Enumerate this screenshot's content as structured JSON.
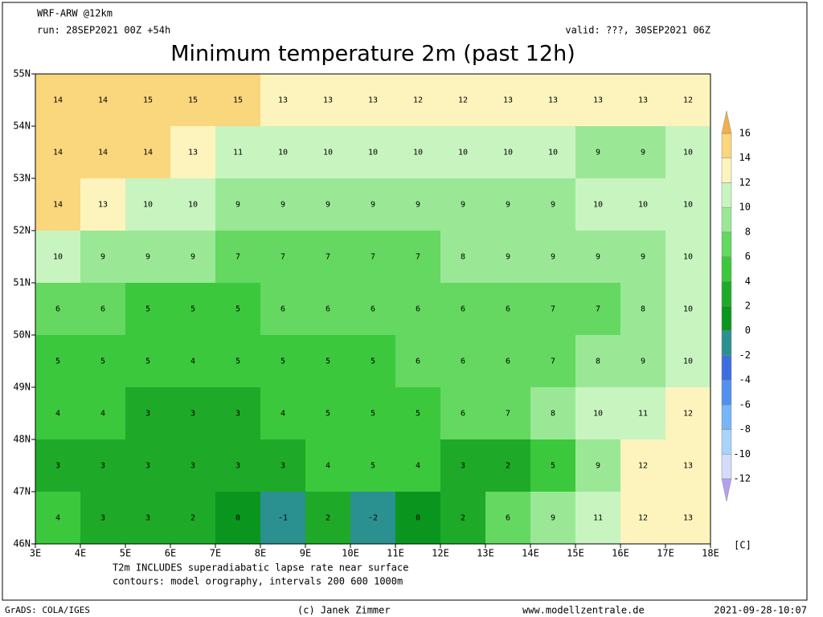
{
  "header": {
    "model": "WRF-ARW @12km",
    "run": "run: 28SEP2021 00Z +54h",
    "valid": "valid: ???, 30SEP2021 06Z",
    "title": "Minimum temperature 2m (past 12h)"
  },
  "map": {
    "xlim": [
      3,
      18
    ],
    "ylim": [
      46,
      55
    ],
    "xticks": [
      {
        "value": 3,
        "label": "3E"
      },
      {
        "value": 4,
        "label": "4E"
      },
      {
        "value": 5,
        "label": "5E"
      },
      {
        "value": 6,
        "label": "6E"
      },
      {
        "value": 7,
        "label": "7E"
      },
      {
        "value": 8,
        "label": "8E"
      },
      {
        "value": 9,
        "label": "9E"
      },
      {
        "value": 10,
        "label": "10E"
      },
      {
        "value": 11,
        "label": "11E"
      },
      {
        "value": 12,
        "label": "12E"
      },
      {
        "value": 13,
        "label": "13E"
      },
      {
        "value": 14,
        "label": "14E"
      },
      {
        "value": 15,
        "label": "15E"
      },
      {
        "value": 16,
        "label": "16E"
      },
      {
        "value": 17,
        "label": "17E"
      },
      {
        "value": 18,
        "label": "18E"
      }
    ],
    "yticks": [
      {
        "value": 55,
        "label": "55N"
      },
      {
        "value": 54,
        "label": "54N"
      },
      {
        "value": 53,
        "label": "53N"
      },
      {
        "value": 52,
        "label": "52N"
      },
      {
        "value": 51,
        "label": "51N"
      },
      {
        "value": 50,
        "label": "50N"
      },
      {
        "value": 49,
        "label": "49N"
      },
      {
        "value": 48,
        "label": "48N"
      },
      {
        "value": 47,
        "label": "47N"
      },
      {
        "value": 46,
        "label": "46N"
      }
    ],
    "field": [
      [
        14,
        14,
        15,
        15,
        15,
        13,
        13,
        13,
        12,
        12,
        13,
        13,
        13,
        13,
        12
      ],
      [
        14,
        14,
        14,
        13,
        11,
        10,
        10,
        10,
        10,
        10,
        10,
        10,
        9,
        9,
        10
      ],
      [
        14,
        13,
        10,
        10,
        9,
        9,
        9,
        9,
        9,
        9,
        9,
        9,
        10,
        10,
        10
      ],
      [
        10,
        9,
        9,
        9,
        7,
        7,
        7,
        7,
        7,
        8,
        9,
        9,
        9,
        9,
        10
      ],
      [
        6,
        6,
        5,
        5,
        5,
        6,
        6,
        6,
        6,
        6,
        6,
        7,
        7,
        8,
        10
      ],
      [
        5,
        5,
        5,
        4,
        5,
        5,
        5,
        5,
        6,
        6,
        6,
        7,
        8,
        9,
        10
      ],
      [
        4,
        4,
        3,
        3,
        3,
        4,
        5,
        5,
        5,
        6,
        7,
        8,
        10,
        11,
        12
      ],
      [
        3,
        3,
        3,
        3,
        3,
        3,
        4,
        5,
        4,
        3,
        2,
        5,
        9,
        12,
        13
      ],
      [
        4,
        3,
        3,
        2,
        0,
        -1,
        2,
        -2,
        0,
        2,
        6,
        9,
        11,
        12,
        13
      ]
    ]
  },
  "colorbar": {
    "levels": [
      -12,
      -10,
      -8,
      -6,
      -4,
      -2,
      0,
      2,
      4,
      6,
      8,
      10,
      12,
      14,
      16
    ],
    "colors": [
      "#b4a0f0",
      "#d4dcfa",
      "#a8d4f8",
      "#78b4f8",
      "#5090f0",
      "#3c6ee0",
      "#2a9090",
      "#0a961e",
      "#1eaa28",
      "#3cc83c",
      "#64d860",
      "#9ae896",
      "#c8f4c0",
      "#fcf4bc",
      "#fad67c",
      "#f2b048"
    ],
    "unit": "[C]"
  },
  "notes": {
    "line1": "T2m INCLUDES superadiabatic lapse rate near surface",
    "line2": "contours: model orography, intervals 200 600 1000m"
  },
  "footer": {
    "software": "GrADS: COLA/IGES",
    "author": "(c) Janek Zimmer",
    "site": "www.modellzentrale.de",
    "timestamp": "2021-09-28-10:07"
  }
}
